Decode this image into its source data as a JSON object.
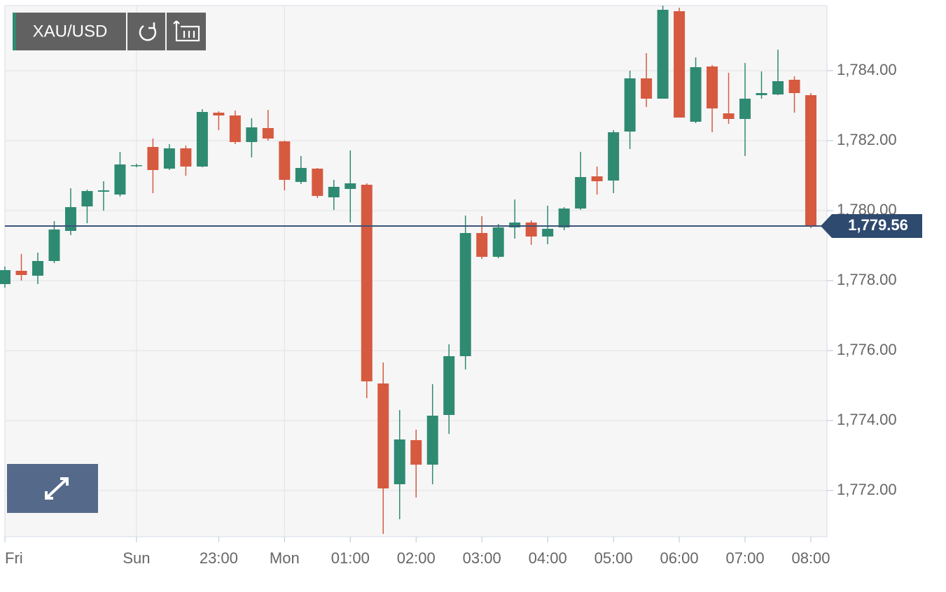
{
  "chart_data": {
    "type": "candlestick",
    "title": "XAU/USD",
    "categories": [
      "Fri",
      null,
      null,
      null,
      null,
      null,
      null,
      null,
      "Sun",
      null,
      null,
      null,
      null,
      "23:00",
      null,
      null,
      null,
      "Mon",
      null,
      null,
      null,
      "01:00",
      null,
      null,
      null,
      "02:00",
      null,
      null,
      null,
      "03:00",
      null,
      null,
      null,
      "04:00",
      null,
      null,
      null,
      "05:00",
      null,
      null,
      null,
      "06:00",
      null,
      null,
      null,
      "07:00",
      null,
      null,
      null,
      "08:00"
    ],
    "open": [
      1777.9,
      1778.28,
      1778.14,
      1778.56,
      1779.42,
      1780.12,
      1780.54,
      1780.46,
      1781.3,
      1781.82,
      1781.2,
      1781.78,
      1781.26,
      1782.8,
      1782.72,
      1781.96,
      1782.36,
      1781.98,
      1780.82,
      1781.2,
      1780.38,
      1780.62,
      1780.74,
      1775.06,
      1772.18,
      1773.44,
      1772.74,
      1774.16,
      1775.84,
      1779.36,
      1778.68,
      1779.52,
      1779.66,
      1779.26,
      1779.52,
      1780.06,
      1780.98,
      1780.86,
      1782.26,
      1783.78,
      1783.2,
      1785.7,
      1782.54,
      1784.12,
      1782.78,
      1782.62,
      1783.3,
      1783.32,
      1783.74,
      1783.3
    ],
    "high": [
      1778.4,
      1778.76,
      1778.8,
      1779.7,
      1780.64,
      1780.6,
      1780.84,
      1781.68,
      1781.34,
      1782.06,
      1781.9,
      1781.86,
      1782.9,
      1782.84,
      1782.86,
      1782.64,
      1782.88,
      1782.0,
      1781.56,
      1781.22,
      1780.88,
      1781.72,
      1780.78,
      1775.66,
      1774.3,
      1773.74,
      1775.04,
      1776.18,
      1779.86,
      1779.84,
      1779.62,
      1780.32,
      1779.72,
      1780.14,
      1780.1,
      1781.68,
      1781.26,
      1782.3,
      1784.0,
      1784.5,
      1785.86,
      1785.8,
      1784.38,
      1784.16,
      1783.94,
      1784.22,
      1783.98,
      1784.6,
      1783.84,
      1783.36
    ],
    "low": [
      1777.8,
      1778.0,
      1777.9,
      1778.5,
      1779.3,
      1779.64,
      1780.0,
      1780.4,
      1781.24,
      1780.5,
      1781.16,
      1781.0,
      1781.24,
      1782.3,
      1781.9,
      1781.52,
      1782.0,
      1780.58,
      1780.76,
      1780.36,
      1780.02,
      1779.66,
      1774.64,
      1770.76,
      1771.18,
      1771.8,
      1772.18,
      1773.62,
      1775.46,
      1778.62,
      1778.64,
      1779.2,
      1779.02,
      1779.04,
      1779.44,
      1780.02,
      1780.46,
      1780.5,
      1781.76,
      1782.96,
      1783.2,
      1782.66,
      1782.5,
      1782.24,
      1782.48,
      1781.56,
      1783.2,
      1783.3,
      1782.8,
      1779.5
    ],
    "close": [
      1778.3,
      1778.16,
      1778.56,
      1779.46,
      1780.1,
      1780.56,
      1780.58,
      1781.32,
      1781.3,
      1781.16,
      1781.78,
      1781.26,
      1782.82,
      1782.72,
      1781.96,
      1782.38,
      1782.06,
      1780.88,
      1781.22,
      1780.42,
      1780.68,
      1780.78,
      1775.12,
      1772.06,
      1773.46,
      1772.74,
      1774.14,
      1775.84,
      1779.36,
      1778.68,
      1779.52,
      1779.66,
      1779.26,
      1779.48,
      1780.06,
      1780.96,
      1780.84,
      1782.24,
      1783.78,
      1783.2,
      1785.74,
      1782.66,
      1784.1,
      1782.92,
      1782.62,
      1783.2,
      1783.36,
      1783.7,
      1783.36,
      1779.56
    ],
    "up_color": "#2f8a72",
    "down_color": "#d65a40",
    "ylim": [
      1770.68,
      1785.86
    ],
    "yticks": [
      {
        "value": 1772,
        "label": "1,772.00"
      },
      {
        "value": 1774,
        "label": "1,774.00"
      },
      {
        "value": 1776,
        "label": "1,776.00"
      },
      {
        "value": 1778,
        "label": "1,778.00"
      },
      {
        "value": 1780,
        "label": "1,780.00"
      },
      {
        "value": 1782,
        "label": "1,782.00"
      },
      {
        "value": 1784,
        "label": "1,784.00"
      }
    ],
    "grid": true,
    "current_price": 1779.56,
    "current_price_label": "1,779.56"
  }
}
